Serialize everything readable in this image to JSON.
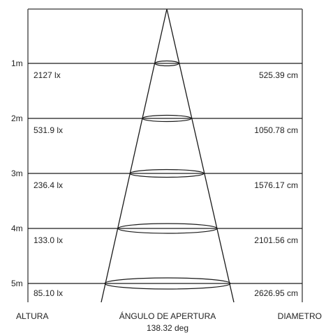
{
  "levels": [
    {
      "height": "1m",
      "lux": "2127 lx",
      "diameter": "525.39 cm"
    },
    {
      "height": "2m",
      "lux": "531.9 lx",
      "diameter": "1050.78 cm"
    },
    {
      "height": "3m",
      "lux": "236.4 lx",
      "diameter": "1576.17 cm"
    },
    {
      "height": "4m",
      "lux": "133.0 lx",
      "diameter": "2101.56 cm"
    },
    {
      "height": "5m",
      "lux": "85.10 lx",
      "diameter": "2626.95 cm"
    }
  ],
  "footer": {
    "height_label": "ALTURA",
    "angle_label": "ÁNGULO DE APERTURA",
    "angle_value": "138.32 deg",
    "diameter_label": "DIAMETRO"
  },
  "colors": {
    "line": "#1a1a1a",
    "text": "#222222",
    "border": "#555555"
  }
}
